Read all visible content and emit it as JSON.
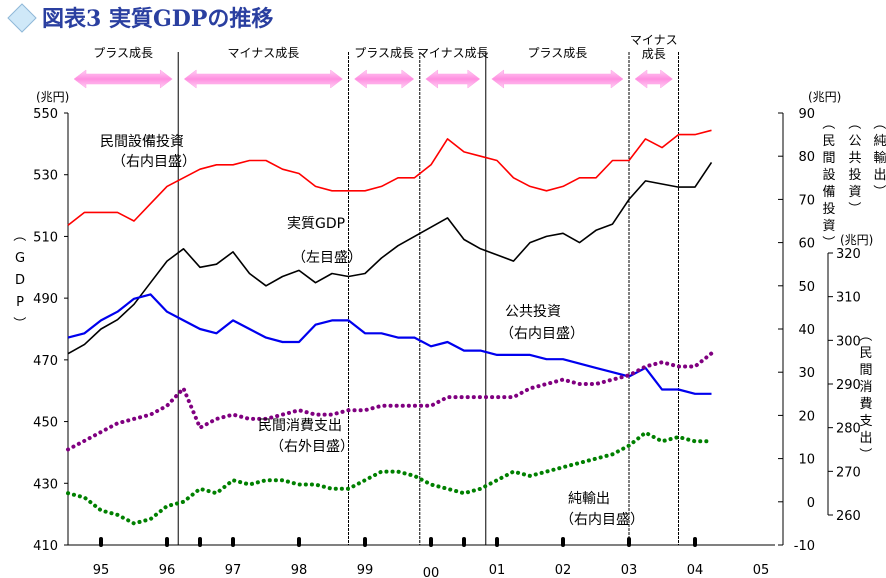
{
  "title": "図表3 実質GDPの推移",
  "chart_data": {
    "type": "line",
    "title": "図表3 実質GDPの推移",
    "x_categories": [
      "95",
      "96",
      "97",
      "98",
      "99",
      "00",
      "01",
      "02",
      "03",
      "04",
      "05"
    ],
    "x_start": 1995.0,
    "axes": {
      "left": {
        "label": "（GDP）",
        "unit": "(兆円)",
        "min": 410,
        "max": 550,
        "ticks": [
          410,
          430,
          450,
          470,
          490,
          510,
          530,
          550
        ]
      },
      "right_inner": {
        "label": "（民間設備投資）（公共投資）（純輸出）",
        "unit": "(兆円)",
        "min": -10,
        "max": 90,
        "ticks": [
          -10,
          0,
          10,
          20,
          30,
          40,
          50,
          60,
          70,
          80,
          90
        ]
      },
      "right_outer": {
        "label": "（民間消費支出）",
        "unit": "(兆円)",
        "min": 260,
        "max": 320,
        "ticks": [
          260,
          270,
          280,
          290,
          300,
          310,
          320
        ]
      }
    },
    "phases": [
      {
        "label": "プラス成長",
        "start": 1995.0,
        "end": 1996.67
      },
      {
        "label": "マイナス成長",
        "start": 1996.67,
        "end": 1999.25
      },
      {
        "label": "プラス成長",
        "start": 1999.25,
        "end": 2000.33
      },
      {
        "label": "マイナス成長",
        "start": 2000.33,
        "end": 2001.33
      },
      {
        "label": "プラス成長",
        "start": 2001.33,
        "end": 2003.5
      },
      {
        "label": "マイナス成長",
        "start": 2003.5,
        "end": 2004.25
      }
    ],
    "series": [
      {
        "name": "実質GDP",
        "axis_label": "（左目盛）",
        "axis": "left",
        "color": "#000000",
        "style": "solid",
        "x": [
          1995.0,
          1995.25,
          1995.5,
          1995.75,
          1996.0,
          1996.25,
          1996.5,
          1996.75,
          1997.0,
          1997.25,
          1997.5,
          1997.75,
          1998.0,
          1998.25,
          1998.5,
          1998.75,
          1999.0,
          1999.25,
          1999.5,
          1999.75,
          2000.0,
          2000.25,
          2000.5,
          2000.75,
          2001.0,
          2001.25,
          2001.5,
          2001.75,
          2002.0,
          2002.25,
          2002.5,
          2002.75,
          2003.0,
          2003.25,
          2003.5,
          2003.75,
          2004.0,
          2004.25,
          2004.5,
          2004.75
        ],
        "values": [
          472,
          475,
          480,
          483,
          488,
          495,
          502,
          506,
          500,
          501,
          505,
          498,
          494,
          497,
          499,
          495,
          498,
          497,
          498,
          503,
          507,
          510,
          513,
          516,
          509,
          506,
          504,
          502,
          508,
          510,
          511,
          508,
          512,
          514,
          522,
          528,
          527,
          526,
          526,
          534
        ]
      },
      {
        "name": "民間設備投資",
        "axis_label": "（右内目盛）",
        "axis": "right_inner",
        "color": "#ff0000",
        "style": "solid",
        "x": [
          1995.0,
          1995.25,
          1995.5,
          1995.75,
          1996.0,
          1996.25,
          1996.5,
          1996.75,
          1997.0,
          1997.25,
          1997.5,
          1997.75,
          1998.0,
          1998.25,
          1998.5,
          1998.75,
          1999.0,
          1999.25,
          1999.5,
          1999.75,
          2000.0,
          2000.25,
          2000.5,
          2000.75,
          2001.0,
          2001.25,
          2001.5,
          2001.75,
          2002.0,
          2002.25,
          2002.5,
          2002.75,
          2003.0,
          2003.25,
          2003.5,
          2003.75,
          2004.0,
          2004.25,
          2004.5,
          2004.75
        ],
        "values": [
          64,
          67,
          67,
          67,
          65,
          69,
          73,
          75,
          77,
          78,
          78,
          79,
          79,
          77,
          76,
          73,
          72,
          72,
          72,
          73,
          75,
          75,
          78,
          84,
          81,
          80,
          79,
          75,
          73,
          72,
          73,
          75,
          75,
          79,
          79,
          84,
          82,
          85,
          85,
          86
        ]
      },
      {
        "name": "公共投資",
        "axis_label": "（右内目盛）",
        "axis": "right_inner",
        "color": "#0000ee",
        "style": "solid",
        "x": [
          1995.0,
          1995.25,
          1995.5,
          1995.75,
          1996.0,
          1996.25,
          1996.5,
          1996.75,
          1997.0,
          1997.25,
          1997.5,
          1997.75,
          1998.0,
          1998.25,
          1998.5,
          1998.75,
          1999.0,
          1999.25,
          1999.5,
          1999.75,
          2000.0,
          2000.25,
          2000.5,
          2000.75,
          2001.0,
          2001.25,
          2001.5,
          2001.75,
          2002.0,
          2002.25,
          2002.5,
          2002.75,
          2003.0,
          2003.25,
          2003.5,
          2003.75,
          2004.0,
          2004.25,
          2004.5,
          2004.75
        ],
        "values": [
          38,
          39,
          42,
          44,
          47,
          48,
          44,
          42,
          40,
          39,
          42,
          40,
          38,
          37,
          37,
          41,
          42,
          42,
          39,
          39,
          38,
          38,
          36,
          37,
          35,
          35,
          34,
          34,
          34,
          33,
          33,
          32,
          31,
          30,
          29,
          31,
          26,
          26,
          25,
          25
        ]
      },
      {
        "name": "民間消費支出",
        "axis_label": "（右外目盛）",
        "axis": "right_outer",
        "color": "#800080",
        "style": "dotted",
        "x": [
          1995.0,
          1995.25,
          1995.5,
          1995.75,
          1996.0,
          1996.25,
          1996.5,
          1996.75,
          1997.0,
          1997.25,
          1997.5,
          1997.75,
          1998.0,
          1998.25,
          1998.5,
          1998.75,
          1999.0,
          1999.25,
          1999.5,
          1999.75,
          2000.0,
          2000.25,
          2000.5,
          2000.75,
          2001.0,
          2001.25,
          2001.5,
          2001.75,
          2002.0,
          2002.25,
          2002.5,
          2002.75,
          2003.0,
          2003.25,
          2003.5,
          2003.75,
          2004.0,
          2004.25,
          2004.5,
          2004.75
        ],
        "values": [
          275,
          277,
          279,
          281,
          282,
          283,
          285,
          289,
          280,
          282,
          283,
          282,
          282,
          283,
          284,
          283,
          283,
          284,
          284,
          285,
          285,
          285,
          285,
          287,
          287,
          287,
          287,
          287,
          289,
          290,
          291,
          290,
          290,
          291,
          292,
          294,
          295,
          294,
          294,
          297
        ]
      },
      {
        "name": "純輸出",
        "axis_label": "（右内目盛）",
        "axis": "right_inner",
        "color": "#008000",
        "style": "dotted",
        "x": [
          1995.0,
          1995.25,
          1995.5,
          1995.75,
          1996.0,
          1996.25,
          1996.5,
          1996.75,
          1997.0,
          1997.25,
          1997.5,
          1997.75,
          1998.0,
          1998.25,
          1998.5,
          1998.75,
          1999.0,
          1999.25,
          1999.5,
          1999.75,
          2000.0,
          2000.25,
          2000.5,
          2000.75,
          2001.0,
          2001.25,
          2001.5,
          2001.75,
          2002.0,
          2002.25,
          2002.5,
          2002.75,
          2003.0,
          2003.25,
          2003.5,
          2003.75,
          2004.0,
          2004.25,
          2004.5,
          2004.75
        ],
        "values": [
          2,
          1,
          -2,
          -3,
          -5,
          -4,
          -1,
          0,
          3,
          2,
          5,
          4,
          5,
          5,
          4,
          4,
          3,
          3,
          5,
          7,
          7,
          6,
          4,
          3,
          2,
          3,
          5,
          7,
          6,
          7,
          8,
          9,
          10,
          11,
          13,
          16,
          14,
          15,
          14,
          14
        ]
      }
    ],
    "annotations": [
      {
        "series": "民間設備投資",
        "lines": [
          "民間設備投資",
          "（右内目盛）"
        ]
      },
      {
        "series": "実質GDP",
        "lines": [
          "実質GDP",
          "（左目盛）"
        ]
      },
      {
        "series": "公共投資",
        "lines": [
          "公共投資",
          "（右内目盛）"
        ]
      },
      {
        "series": "民間消費支出",
        "lines": [
          "民間消費支出",
          "（右外目盛）"
        ]
      },
      {
        "series": "純輸出",
        "lines": [
          "純輸出",
          "（右内目盛）"
        ]
      }
    ],
    "markers": [
      1995.5,
      1996.5,
      1997.0,
      1997.5,
      1998.5,
      1999.5,
      2000.5,
      2001.0,
      2001.5,
      2002.5,
      2003.5,
      2004.5
    ],
    "vertical_lines": [
      1996.67,
      1999.25,
      2000.33,
      2001.33,
      2003.5,
      2004.25
    ],
    "colors": {
      "title": "#2a3fa0",
      "phase_arrow": "#ffaaee",
      "background": "#ffffff"
    }
  }
}
